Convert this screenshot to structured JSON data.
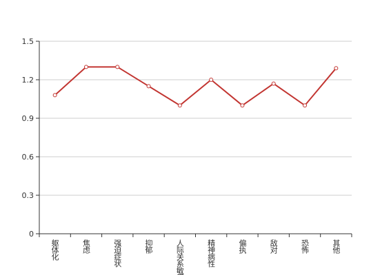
{
  "chart_data": {
    "type": "line",
    "categories": [
      "躯体化",
      "焦虑",
      "强迫症状",
      "抑郁",
      "人际关系敏感",
      "精神病性",
      "偏执",
      "敌对",
      "恐怖",
      "其他"
    ],
    "values": [
      1.08,
      1.3,
      1.3,
      1.15,
      1.0,
      1.2,
      1.0,
      1.17,
      1.0,
      1.29
    ],
    "color": "#c23531",
    "ylim": [
      0,
      1.5
    ],
    "yticks": [
      0,
      0.3,
      0.6,
      0.9,
      1.2,
      1.5
    ],
    "grid": true
  }
}
